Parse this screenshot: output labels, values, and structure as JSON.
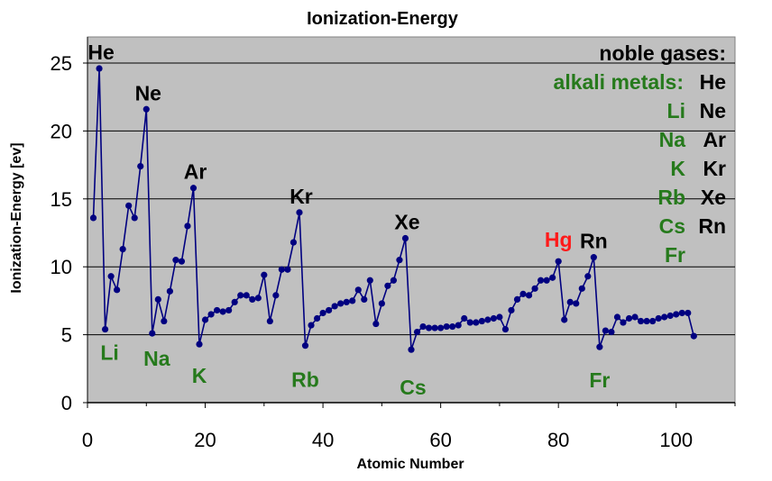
{
  "chart_data": {
    "type": "line",
    "title": "Ionization-Energy",
    "xlabel": "Atomic Number",
    "ylabel": "Ionization-Energy [ev]",
    "xlim": [
      0,
      110
    ],
    "ylim": [
      0,
      25
    ],
    "xticks": [
      0,
      20,
      40,
      60,
      80,
      100
    ],
    "yticks": [
      0,
      5,
      10,
      15,
      20,
      25
    ],
    "grid": "horizontal",
    "plot_background": "#c0c0c0",
    "series": [
      {
        "color": "#000080",
        "x": [
          1,
          2,
          3,
          4,
          5,
          6,
          7,
          8,
          9,
          10,
          11,
          12,
          13,
          14,
          15,
          16,
          17,
          18,
          19,
          20,
          21,
          22,
          23,
          24,
          25,
          26,
          27,
          28,
          29,
          30,
          31,
          32,
          33,
          34,
          35,
          36,
          37,
          38,
          39,
          40,
          41,
          42,
          43,
          44,
          45,
          46,
          47,
          48,
          49,
          50,
          51,
          52,
          53,
          54,
          55,
          56,
          57,
          58,
          59,
          60,
          61,
          62,
          63,
          64,
          65,
          66,
          67,
          68,
          69,
          70,
          71,
          72,
          73,
          74,
          75,
          76,
          77,
          78,
          79,
          80,
          81,
          82,
          83,
          84,
          85,
          86,
          87,
          88,
          89,
          90,
          91,
          92,
          93,
          94,
          95,
          96,
          97,
          98,
          99,
          100,
          101,
          102,
          103
        ],
        "y": [
          13.6,
          24.6,
          5.4,
          9.3,
          8.3,
          11.3,
          14.5,
          13.6,
          17.4,
          21.6,
          5.1,
          7.6,
          6.0,
          8.2,
          10.5,
          10.4,
          13.0,
          15.8,
          4.3,
          6.1,
          6.5,
          6.8,
          6.7,
          6.8,
          7.4,
          7.9,
          7.9,
          7.6,
          7.7,
          9.4,
          6.0,
          7.9,
          9.8,
          9.8,
          11.8,
          14.0,
          4.2,
          5.7,
          6.2,
          6.6,
          6.8,
          7.1,
          7.3,
          7.4,
          7.5,
          8.3,
          7.6,
          9.0,
          5.8,
          7.3,
          8.6,
          9.0,
          10.5,
          12.1,
          3.9,
          5.2,
          5.6,
          5.5,
          5.5,
          5.5,
          5.6,
          5.6,
          5.7,
          6.2,
          5.9,
          5.9,
          6.0,
          6.1,
          6.2,
          6.3,
          5.4,
          6.8,
          7.6,
          8.0,
          7.9,
          8.4,
          9.0,
          9.0,
          9.2,
          10.4,
          6.1,
          7.4,
          7.3,
          8.4,
          9.3,
          10.7,
          4.1,
          5.3,
          5.2,
          6.3,
          5.9,
          6.2,
          6.3,
          6.0,
          6.0,
          6.0,
          6.2,
          6.3,
          6.4,
          6.5,
          6.6,
          6.6,
          4.9
        ]
      }
    ],
    "annotations": {
      "noble": [
        {
          "text": "He",
          "x": 2,
          "y": 24.6
        },
        {
          "text": "Ne",
          "x": 10,
          "y": 21.6
        },
        {
          "text": "Ar",
          "x": 18,
          "y": 15.8
        },
        {
          "text": "Kr",
          "x": 36,
          "y": 14.0
        },
        {
          "text": "Xe",
          "x": 54,
          "y": 12.1
        },
        {
          "text": "Rn",
          "x": 86,
          "y": 10.7
        }
      ],
      "alkali": [
        {
          "text": "Li",
          "x": 3,
          "y": 5.4
        },
        {
          "text": "Na",
          "x": 11,
          "y": 5.1
        },
        {
          "text": "K",
          "x": 19,
          "y": 4.3
        },
        {
          "text": "Rb",
          "x": 37,
          "y": 4.2
        },
        {
          "text": "Cs",
          "x": 55,
          "y": 3.9
        },
        {
          "text": "Fr",
          "x": 87,
          "y": 4.1
        }
      ],
      "other": [
        {
          "text": "Hg",
          "x": 80,
          "y": 10.4
        }
      ]
    },
    "legend": {
      "placement": "top-right",
      "noble_title": "noble gases:",
      "alkali_title": "alkali metals:",
      "alkali_items": [
        "Li",
        "Na",
        "K",
        "Rb",
        "Cs",
        "Fr"
      ],
      "noble_items": [
        "He",
        "Ne",
        "Ar",
        "Kr",
        "Xe",
        "Rn"
      ]
    },
    "colors": {
      "noble": "#000000",
      "alkali": "#267a1c",
      "highlight": "#ff1a1a"
    }
  }
}
